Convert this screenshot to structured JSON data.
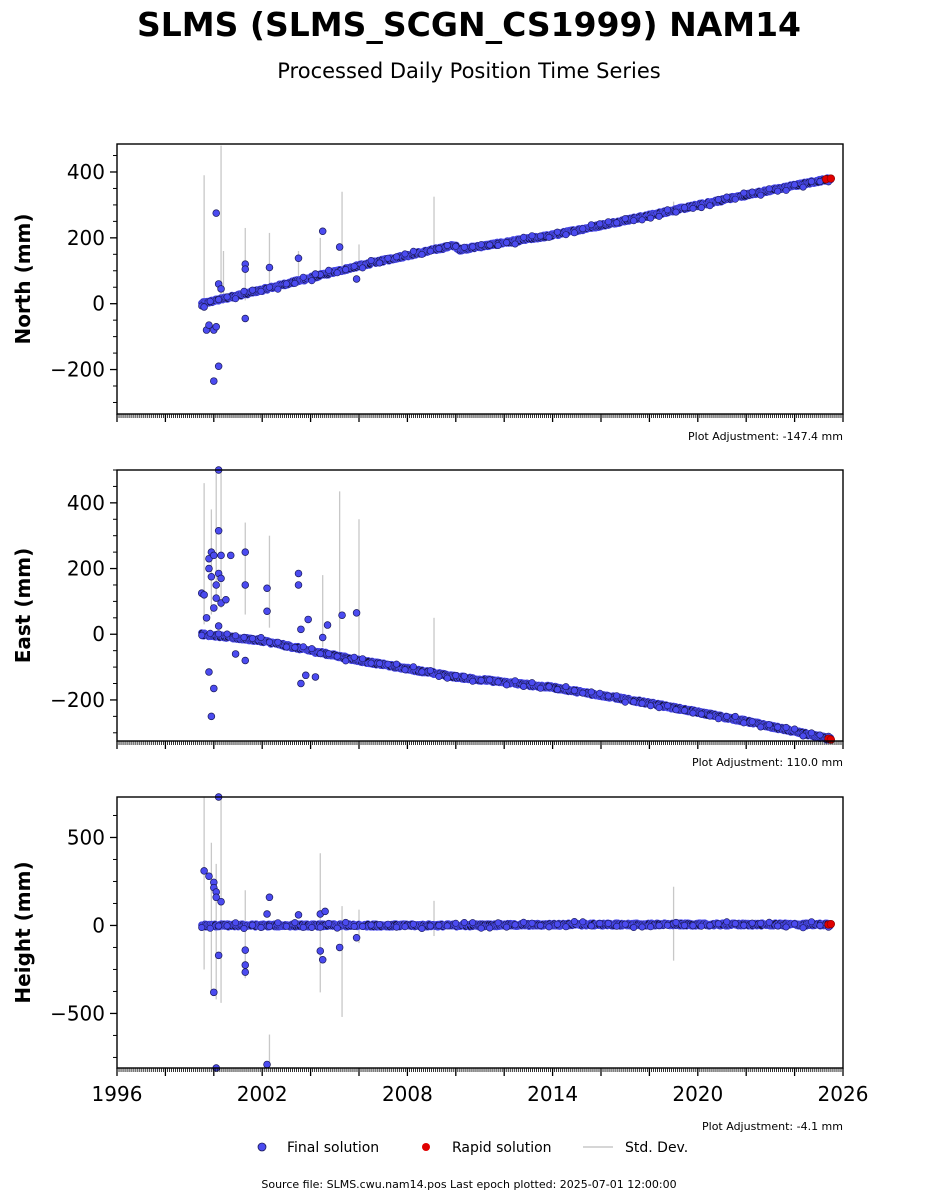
{
  "title": "SLMS (SLMS_SCGN_CS1999) NAM14",
  "subtitle": "Processed Daily Position Time Series",
  "legend": {
    "final": "Final solution",
    "rapid": "Rapid solution",
    "stddev": "Std. Dev."
  },
  "footer": "Source file: SLMS.cwu.nam14.pos  Last epoch plotted: 2025-07-01 12:00:00",
  "colors": {
    "final": "#4b4bf0",
    "final_edge": "#1a1a5a",
    "rapid": "#e00000",
    "stddev": "#c8c8c8",
    "trend": "#151540"
  },
  "chart_data": [
    {
      "type": "scatter",
      "ylabel": "North (mm)",
      "adjustment": "Plot Adjustment: -147.4 mm",
      "xlim": [
        1996,
        2026
      ],
      "ylim": [
        -335,
        485
      ],
      "yticks": [
        -200,
        0,
        200,
        400
      ],
      "ytick_labels": [
        "−200",
        "0",
        "200",
        "400"
      ],
      "trend": [
        [
          1999.5,
          0
        ],
        [
          2002,
          42
        ],
        [
          2006,
          115
        ],
        [
          2010,
          178
        ],
        [
          2010.05,
          163
        ],
        [
          2014,
          208
        ],
        [
          2018,
          268
        ],
        [
          2022,
          330
        ],
        [
          2025.5,
          380
        ]
      ],
      "errorbars": [
        [
          1999.6,
          -5,
          390
        ],
        [
          2000.3,
          20,
          480
        ],
        [
          2000.4,
          0,
          160
        ],
        [
          2001.3,
          10,
          230
        ],
        [
          2002.3,
          60,
          215
        ],
        [
          2003.5,
          70,
          160
        ],
        [
          2004.4,
          90,
          200
        ],
        [
          2005.3,
          100,
          340
        ],
        [
          2006,
          120,
          180
        ],
        [
          2009.1,
          160,
          325
        ],
        [
          2019.0,
          290,
          310
        ]
      ],
      "outliers": [
        [
          1999.6,
          -10
        ],
        [
          1999.7,
          -80
        ],
        [
          1999.8,
          -65
        ],
        [
          2000.0,
          -80
        ],
        [
          2000.1,
          -70
        ],
        [
          2000.0,
          -235
        ],
        [
          2000.2,
          -190
        ],
        [
          2000.1,
          275
        ],
        [
          2000.2,
          60
        ],
        [
          2000.3,
          45
        ],
        [
          2001.3,
          120
        ],
        [
          2001.3,
          105
        ],
        [
          2001.3,
          -45
        ],
        [
          2002.3,
          110
        ],
        [
          2004.5,
          220
        ],
        [
          2005.2,
          172
        ],
        [
          2005.9,
          75
        ],
        [
          2003.5,
          138
        ],
        [
          2004.2,
          90
        ]
      ],
      "rapid": [
        [
          2025.3,
          378
        ],
        [
          2025.5,
          380
        ]
      ]
    },
    {
      "type": "scatter",
      "ylabel": "East (mm)",
      "adjustment": "Plot Adjustment: 110.0 mm",
      "xlim": [
        1996,
        2026
      ],
      "ylim": [
        -325,
        500
      ],
      "yticks": [
        -200,
        0,
        200,
        400
      ],
      "ytick_labels": [
        "−200",
        "0",
        "200",
        "400"
      ],
      "trend": [
        [
          1999.5,
          0
        ],
        [
          2002,
          -20
        ],
        [
          2006,
          -80
        ],
        [
          2010,
          -130
        ],
        [
          2014,
          -162
        ],
        [
          2018,
          -210
        ],
        [
          2022,
          -265
        ],
        [
          2025.5,
          -320
        ]
      ],
      "errorbars": [
        [
          1999.6,
          30,
          460
        ],
        [
          1999.9,
          60,
          380
        ],
        [
          2000.1,
          100,
          500
        ],
        [
          2000.3,
          80,
          500
        ],
        [
          2001.3,
          60,
          340
        ],
        [
          2002.3,
          20,
          300
        ],
        [
          2004.5,
          -40,
          180
        ],
        [
          2005.2,
          -70,
          435
        ],
        [
          2006.0,
          -80,
          350
        ],
        [
          2009.1,
          -115,
          50
        ],
        [
          2019.0,
          -235,
          -215
        ]
      ],
      "outliers": [
        [
          1999.5,
          125
        ],
        [
          1999.6,
          120
        ],
        [
          1999.7,
          50
        ],
        [
          1999.8,
          230
        ],
        [
          1999.9,
          250
        ],
        [
          1999.8,
          200
        ],
        [
          1999.9,
          175
        ],
        [
          2000.0,
          240
        ],
        [
          2000.1,
          150
        ],
        [
          2000.1,
          110
        ],
        [
          2000.0,
          80
        ],
        [
          2000.2,
          500
        ],
        [
          2000.2,
          315
        ],
        [
          2000.3,
          240
        ],
        [
          2000.2,
          185
        ],
        [
          2000.3,
          170
        ],
        [
          2000.3,
          95
        ],
        [
          2000.5,
          105
        ],
        [
          2000.7,
          240
        ],
        [
          2000.0,
          -165
        ],
        [
          1999.9,
          -250
        ],
        [
          1999.8,
          -115
        ],
        [
          2000.2,
          25
        ],
        [
          2000.9,
          -60
        ],
        [
          2001.3,
          250
        ],
        [
          2001.3,
          150
        ],
        [
          2001.3,
          -80
        ],
        [
          2002.2,
          140
        ],
        [
          2002.2,
          70
        ],
        [
          2003.5,
          185
        ],
        [
          2003.5,
          150
        ],
        [
          2003.6,
          15
        ],
        [
          2003.9,
          45
        ],
        [
          2003.6,
          -150
        ],
        [
          2003.8,
          -125
        ],
        [
          2004.2,
          -130
        ],
        [
          2004.5,
          -10
        ],
        [
          2004.7,
          28
        ],
        [
          2005.3,
          58
        ],
        [
          2005.9,
          65
        ]
      ],
      "rapid": [
        [
          2025.4,
          -318
        ],
        [
          2025.5,
          -321
        ]
      ]
    },
    {
      "type": "scatter",
      "ylabel": "Height (mm)",
      "adjustment": "Plot Adjustment: -4.1 mm",
      "xlim": [
        1996,
        2026
      ],
      "ylim": [
        -810,
        730
      ],
      "yticks": [
        -500,
        0,
        500
      ],
      "ytick_labels": [
        "−500",
        "0",
        "500"
      ],
      "xticks": [
        1996,
        2002,
        2008,
        2014,
        2020,
        2026
      ],
      "xtick_labels": [
        "1996",
        "2002",
        "2008",
        "2014",
        "2020",
        "2026"
      ],
      "trend": [
        [
          1999.5,
          0
        ],
        [
          2005,
          0
        ],
        [
          2010,
          0
        ],
        [
          2015,
          5
        ],
        [
          2020,
          5
        ],
        [
          2025.5,
          5
        ]
      ],
      "errorbars": [
        [
          1999.6,
          -250,
          730
        ],
        [
          1999.9,
          -380,
          470
        ],
        [
          2000.1,
          -420,
          350
        ],
        [
          2000.3,
          -440,
          730
        ],
        [
          2001.3,
          -300,
          200
        ],
        [
          2002.3,
          -810,
          -620
        ],
        [
          2004.4,
          -380,
          410
        ],
        [
          2005.3,
          -520,
          110
        ],
        [
          2006.0,
          -100,
          90
        ],
        [
          2009.1,
          -60,
          140
        ],
        [
          2019.0,
          -200,
          220
        ]
      ],
      "outliers": [
        [
          1999.6,
          310
        ],
        [
          1999.8,
          280
        ],
        [
          2000.0,
          245
        ],
        [
          2000.0,
          215
        ],
        [
          2000.1,
          190
        ],
        [
          2000.1,
          160
        ],
        [
          2000.2,
          730
        ],
        [
          2000.3,
          135
        ],
        [
          2000.0,
          -380
        ],
        [
          2000.1,
          -810
        ],
        [
          2000.2,
          -170
        ],
        [
          2001.3,
          -140
        ],
        [
          2001.3,
          -225
        ],
        [
          2001.3,
          -265
        ],
        [
          2002.2,
          -790
        ],
        [
          2002.3,
          160
        ],
        [
          2002.2,
          65
        ],
        [
          2003.5,
          60
        ],
        [
          2004.4,
          65
        ],
        [
          2004.6,
          80
        ],
        [
          2004.4,
          -145
        ],
        [
          2004.5,
          -195
        ],
        [
          2005.2,
          -125
        ],
        [
          2005.9,
          -70
        ]
      ],
      "rapid": [
        [
          2025.4,
          5
        ],
        [
          2025.5,
          8
        ]
      ]
    }
  ]
}
